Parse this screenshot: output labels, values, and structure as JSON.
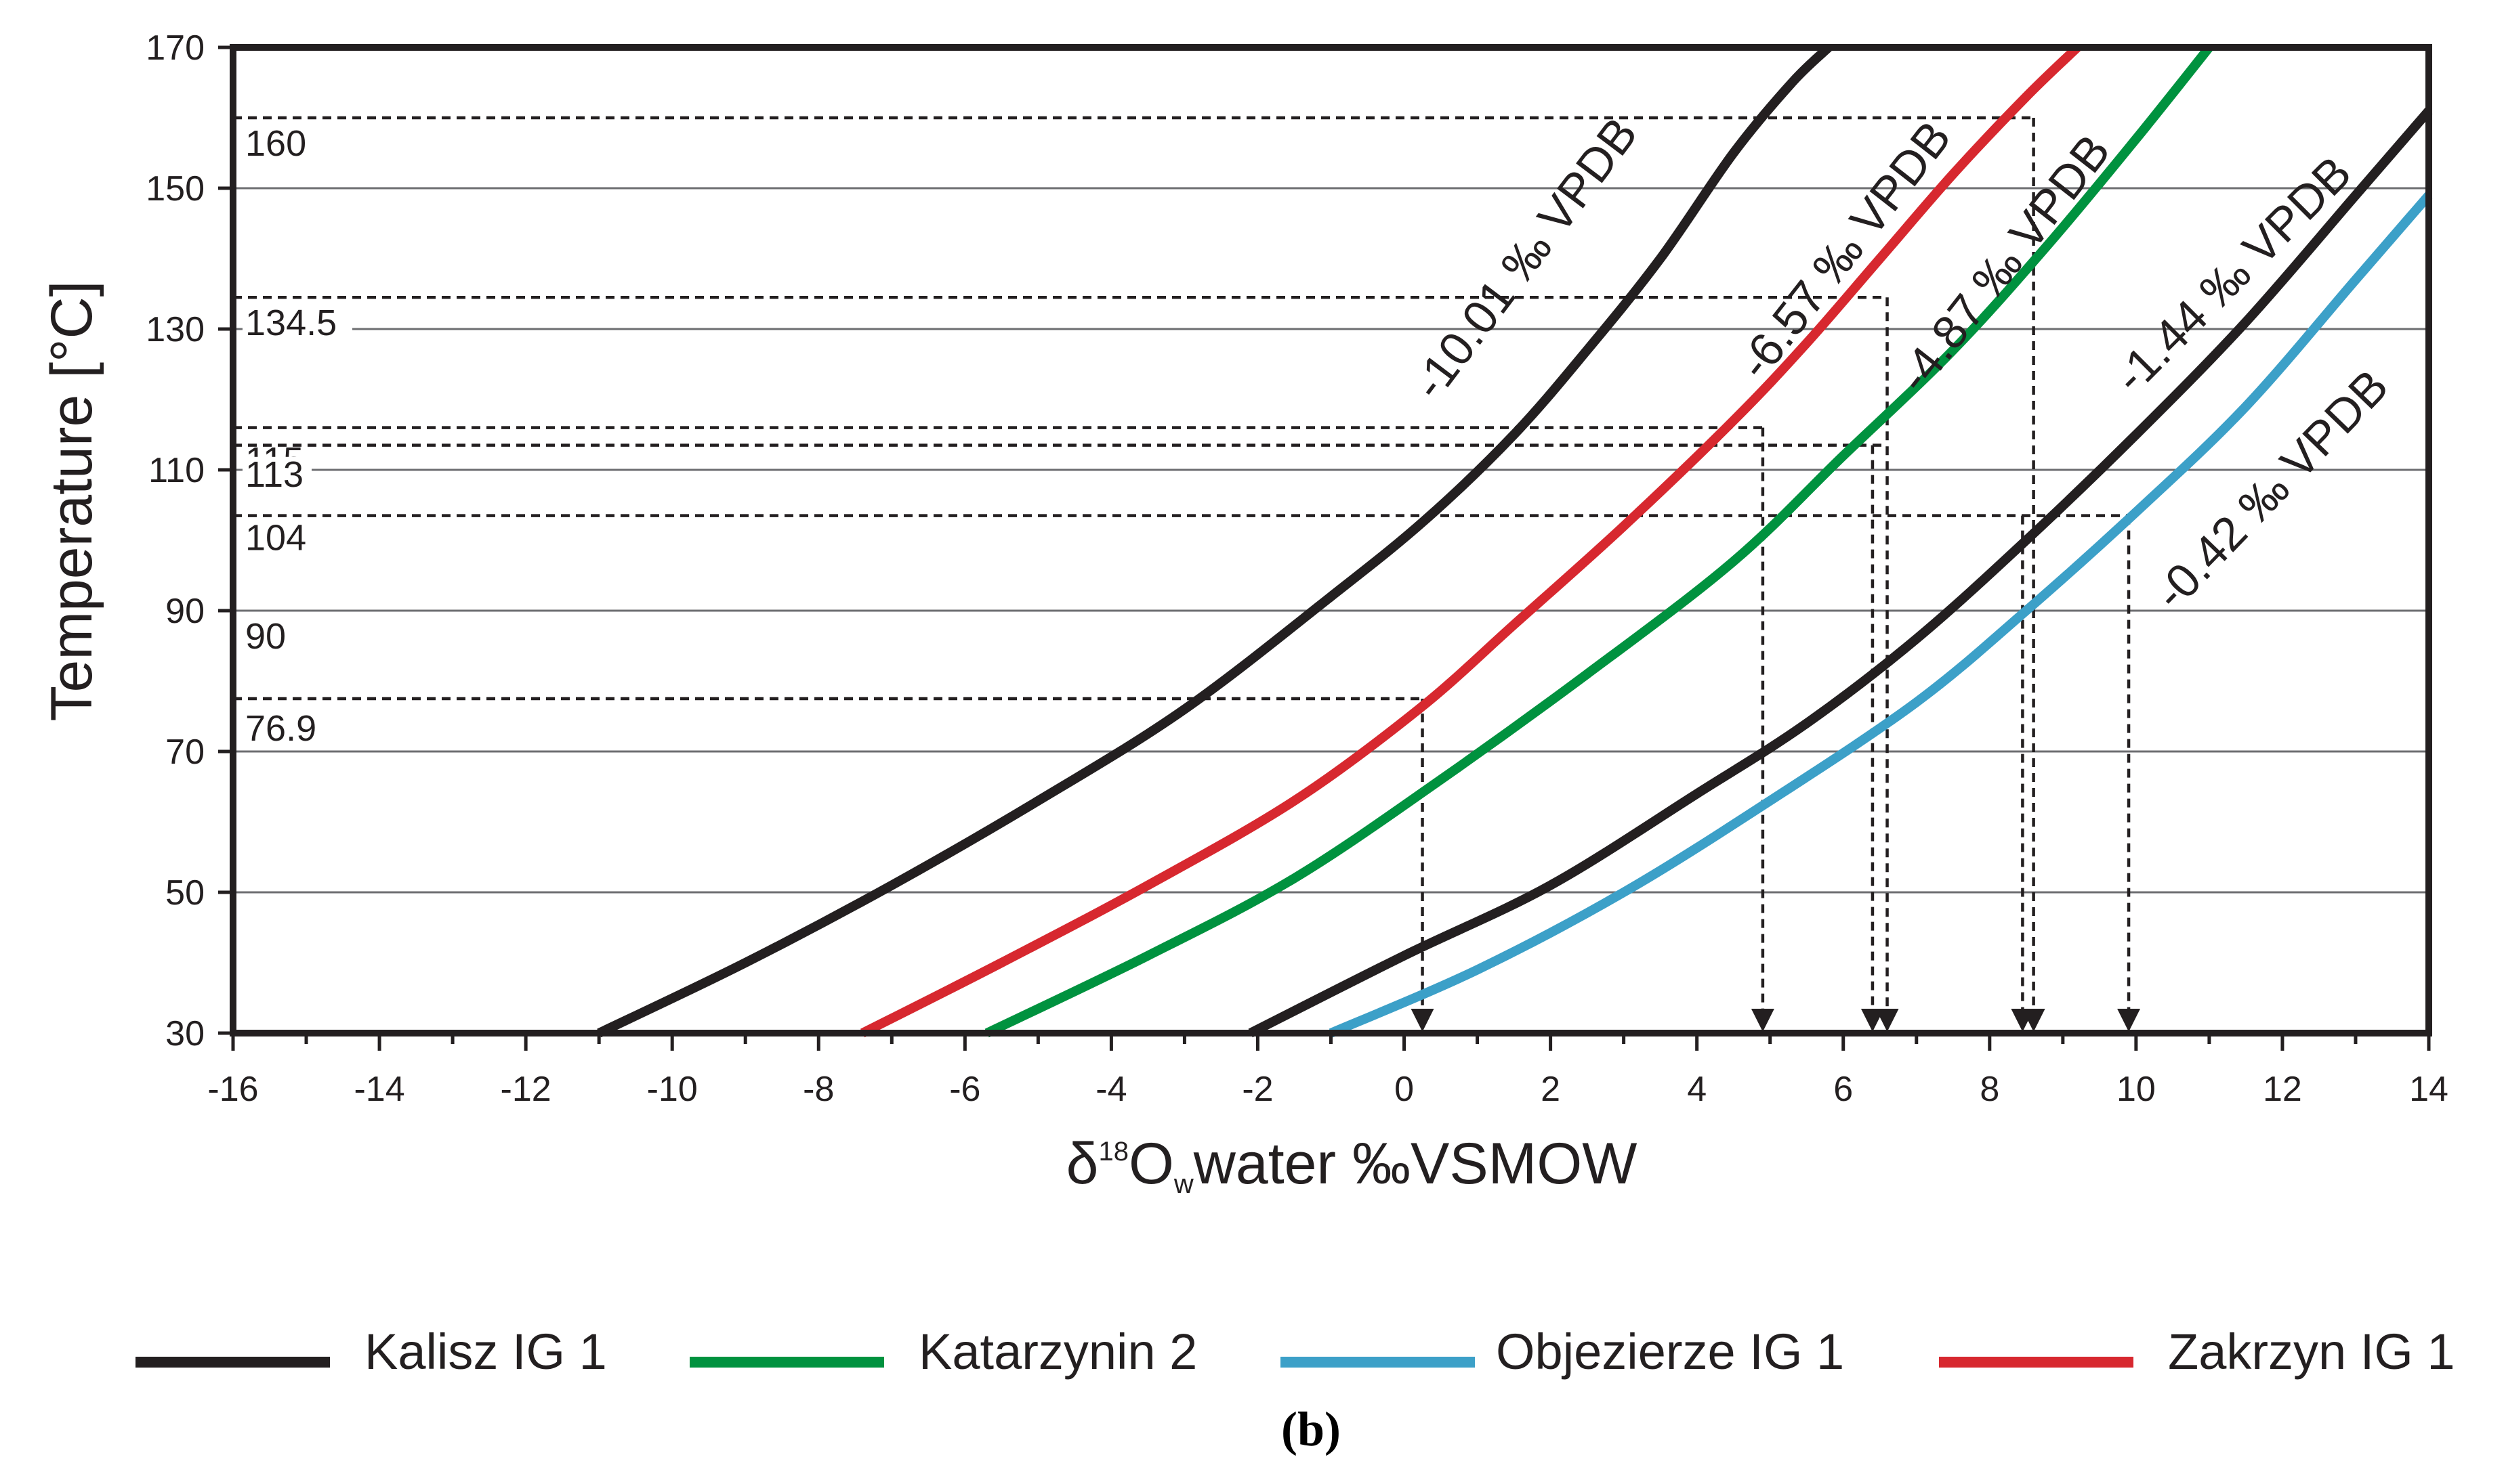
{
  "chart_data": {
    "type": "line",
    "title": "",
    "panel_label": "(b)",
    "xlabel": {
      "delta": "δ",
      "sup": "18",
      "o": "O",
      "sub": "w",
      "rest": "water ‰VSMOW"
    },
    "ylabel": "Temperature [°C]",
    "xlim": [
      -16,
      14
    ],
    "ylim": [
      30,
      170
    ],
    "xticks": [
      -16,
      -14,
      -12,
      -10,
      -8,
      -6,
      -4,
      -2,
      0,
      2,
      4,
      6,
      8,
      10,
      12,
      14
    ],
    "yticks": [
      30,
      50,
      70,
      90,
      110,
      130,
      150,
      170
    ],
    "grid": "horizontal",
    "series": [
      {
        "name": "Kalisz IG 1",
        "color": "#231f20",
        "label": "-10.01 ‰ VPDB",
        "x": [
          -11,
          -9,
          -7,
          -5,
          -3,
          -1,
          0.3,
          1.5,
          2.5,
          3.5,
          4.5,
          5.3,
          5.8
        ],
        "y": [
          30,
          40,
          51,
          63,
          76,
          92,
          103,
          115,
          127,
          140,
          155,
          165,
          170
        ]
      },
      {
        "name": "Zakrzyn IG 1",
        "color": "#d7282f",
        "label": "-6.57 ‰ VPDB",
        "x": [
          -7.4,
          -5.5,
          -3.5,
          -1.5,
          0.2,
          1.5,
          3,
          4.5,
          5.5,
          6.5,
          7.5,
          8.5,
          9.2
        ],
        "y": [
          30,
          40,
          51,
          63,
          76,
          88,
          102,
          117,
          128,
          140,
          152,
          163,
          170
        ]
      },
      {
        "name": "Katarzynin 2",
        "color": "#00923f",
        "label": "-4.87 ‰ VPDB",
        "x": [
          -5.7,
          -3.5,
          -1.5,
          0.5,
          2.5,
          4.5,
          6,
          7.5,
          8.8,
          10,
          11
        ],
        "y": [
          30,
          41,
          52,
          66,
          81,
          97,
          112,
          127,
          142,
          157,
          170
        ]
      },
      {
        "name": "Kalisz IG 1",
        "color": "#231f20",
        "label": "-1.44 ‰ VPDB",
        "x": [
          -2.1,
          0,
          2,
          4,
          5.5,
          7,
          8.5,
          10,
          11.5,
          13,
          14
        ],
        "y": [
          30,
          41,
          51,
          64,
          74,
          86,
          100,
          115,
          131,
          149,
          161
        ]
      },
      {
        "name": "Objezierze IG 1",
        "color": "#3ca0c8",
        "label": "-0.42 ‰ VPDB",
        "x": [
          -1,
          1,
          3,
          5,
          7,
          8.5,
          10,
          11.5,
          13,
          14
        ],
        "y": [
          30,
          39,
          50,
          63,
          77,
          90,
          104,
          119,
          137,
          149
        ]
      }
    ],
    "annotations": {
      "h_labels": [
        "160",
        "134.5",
        "115",
        "113",
        "104",
        "90",
        "76.9"
      ],
      "h_values": [
        160,
        134.5,
        115,
        113,
        104,
        90,
        76.9
      ],
      "h_lines": [
        {
          "y": 160,
          "x_end": 8.6
        },
        {
          "y": 134.5,
          "x_end": 6.6
        },
        {
          "y": 116,
          "x_end": 4.9
        },
        {
          "y": 113.5,
          "x_end": 6.6
        },
        {
          "y": 103.5,
          "x_end": 9.9
        },
        {
          "y": 77.5,
          "x_end": 0.25
        }
      ],
      "v_arrows": [
        {
          "x": 0.25,
          "y_top": 77.5
        },
        {
          "x": 4.9,
          "y_top": 116
        },
        {
          "x": 6.4,
          "y_top": 113.5
        },
        {
          "x": 6.6,
          "y_top": 134.5
        },
        {
          "x": 8.45,
          "y_top": 103.5
        },
        {
          "x": 8.6,
          "y_top": 160
        },
        {
          "x": 9.9,
          "y_top": 103.5
        }
      ]
    },
    "legend": {
      "placement": "bottom",
      "items": [
        {
          "label": "Kalisz IG 1",
          "color": "#231f20"
        },
        {
          "label": "Katarzynin 2",
          "color": "#00923f"
        },
        {
          "label": "Objezierze IG 1",
          "color": "#3ca0c8"
        },
        {
          "label": "Zakrzyn IG 1",
          "color": "#d7282f"
        }
      ]
    }
  }
}
